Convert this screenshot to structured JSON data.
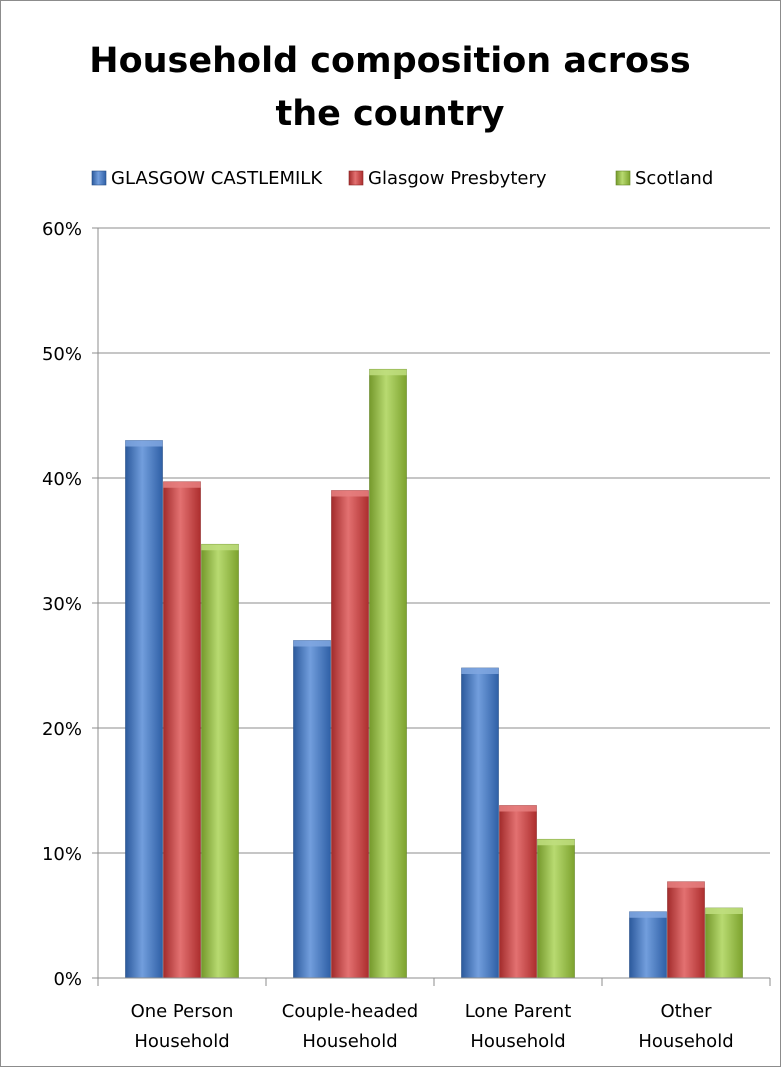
{
  "chart_data": {
    "type": "bar",
    "title_lines": [
      "Household composition across",
      "the country"
    ],
    "categories": [
      [
        "One Person",
        "Household"
      ],
      [
        "Couple-headed",
        "Household"
      ],
      [
        "Lone Parent",
        "Household"
      ],
      [
        "Other",
        "Household"
      ]
    ],
    "series": [
      {
        "name": "GLASGOW CASTLEMILK",
        "color": "#3b78d0",
        "values": [
          43.0,
          27.0,
          24.8,
          5.3
        ]
      },
      {
        "name": "Glasgow Presbytery",
        "color": "#d83a3a",
        "values": [
          39.7,
          39.0,
          13.8,
          7.7
        ]
      },
      {
        "name": "Scotland",
        "color": "#9ccc3a",
        "values": [
          34.7,
          48.7,
          11.1,
          5.6
        ]
      }
    ],
    "ylim": [
      0,
      60
    ],
    "yticks": [
      "0%",
      "10%",
      "20%",
      "30%",
      "40%",
      "50%",
      "60%"
    ],
    "ytick_values": [
      0,
      10,
      20,
      30,
      40,
      50,
      60
    ],
    "grid": true,
    "legend_position": "top"
  }
}
